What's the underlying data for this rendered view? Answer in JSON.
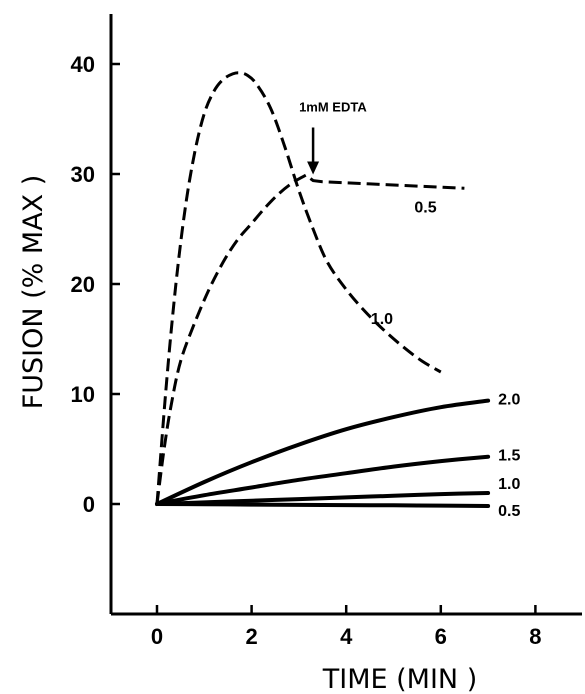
{
  "chart_data": {
    "type": "line",
    "title": "",
    "xlabel": "TIME (MIN )",
    "ylabel": "FUSION (% MAX )",
    "xlim": [
      -1,
      9.2
    ],
    "ylim": [
      -10,
      44
    ],
    "xticks": [
      0,
      2,
      4,
      6,
      8
    ],
    "yticks": [
      0,
      10,
      20,
      30,
      40
    ],
    "grid": false,
    "annotations": [
      {
        "text": "1mM EDTA",
        "x": 3.3,
        "y": 29.5,
        "arrow": "down"
      }
    ],
    "series": [
      {
        "name": "0.5",
        "style": "dashed",
        "x": [
          0,
          0.15,
          0.3,
          0.5,
          0.8,
          1.1,
          1.4,
          1.7,
          2.0,
          2.3,
          2.6,
          2.9,
          3.15,
          3.3,
          3.5,
          4.0,
          4.5,
          5.0,
          5.5,
          6.0,
          6.5
        ],
        "y": [
          0,
          5,
          9,
          13,
          16.5,
          19.5,
          22,
          24,
          25.5,
          27,
          28.3,
          29.3,
          29.9,
          29.4,
          29.3,
          29.2,
          29.1,
          29.0,
          28.9,
          28.8,
          28.7
        ]
      },
      {
        "name": "1.0",
        "style": "dashed",
        "x": [
          0,
          0.2,
          0.4,
          0.6,
          0.8,
          1.0,
          1.2,
          1.4,
          1.6,
          1.75,
          1.9,
          2.1,
          2.4,
          2.7,
          3.0,
          3.3,
          3.6,
          4.0,
          4.4,
          4.8,
          5.2,
          5.6,
          6.0
        ],
        "y": [
          0,
          11,
          20,
          27,
          32,
          35.5,
          37.5,
          38.6,
          39.1,
          39.2,
          39.0,
          38.2,
          36,
          32.5,
          28.5,
          25,
          22,
          19.5,
          17.5,
          15.8,
          14.3,
          13.0,
          12.0
        ]
      },
      {
        "name": "2.0",
        "style": "solid",
        "x": [
          0,
          1,
          2,
          3,
          4,
          5,
          6,
          7
        ],
        "y": [
          0,
          2,
          3.8,
          5.4,
          6.8,
          7.9,
          8.8,
          9.4
        ]
      },
      {
        "name": "1.5",
        "style": "solid",
        "x": [
          0,
          1,
          2,
          3,
          4,
          5,
          6,
          7
        ],
        "y": [
          0,
          0.8,
          1.5,
          2.2,
          2.8,
          3.4,
          3.9,
          4.3
        ]
      },
      {
        "name": "1.0",
        "style": "solid",
        "x": [
          0,
          1,
          2,
          3,
          4,
          5,
          6,
          7
        ],
        "y": [
          0,
          0.15,
          0.3,
          0.45,
          0.6,
          0.75,
          0.9,
          1.0
        ]
      },
      {
        "name": "0.5",
        "style": "solid",
        "x": [
          0,
          1,
          2,
          3,
          4,
          5,
          6,
          7
        ],
        "y": [
          0,
          -0.02,
          -0.05,
          -0.08,
          -0.1,
          -0.12,
          -0.15,
          -0.18
        ]
      }
    ]
  }
}
